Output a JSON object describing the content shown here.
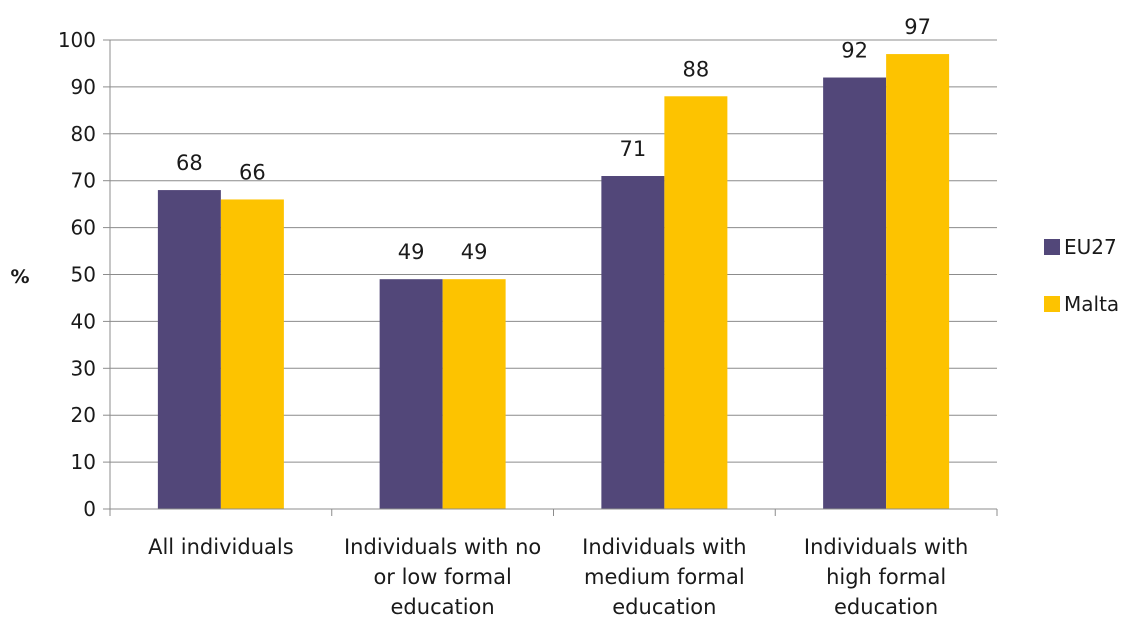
{
  "chart_data": {
    "type": "bar",
    "categories": [
      [
        "All individuals"
      ],
      [
        "Individuals with no",
        "or low formal",
        "education"
      ],
      [
        "Individuals with",
        "medium formal",
        "education"
      ],
      [
        "Individuals with",
        "high formal",
        "education"
      ]
    ],
    "series": [
      {
        "name": "EU27",
        "values": [
          68,
          49,
          71,
          92
        ],
        "color": "#524779"
      },
      {
        "name": "Malta",
        "values": [
          66,
          49,
          88,
          97
        ],
        "color": "#fdc300"
      }
    ],
    "ylabel": "%",
    "xlabel": "",
    "ylim": [
      0,
      100
    ],
    "yticks": [
      0,
      10,
      20,
      30,
      40,
      50,
      60,
      70,
      80,
      90,
      100
    ],
    "grid": true,
    "legend": "right",
    "grid_color": "#8c8c8c"
  }
}
